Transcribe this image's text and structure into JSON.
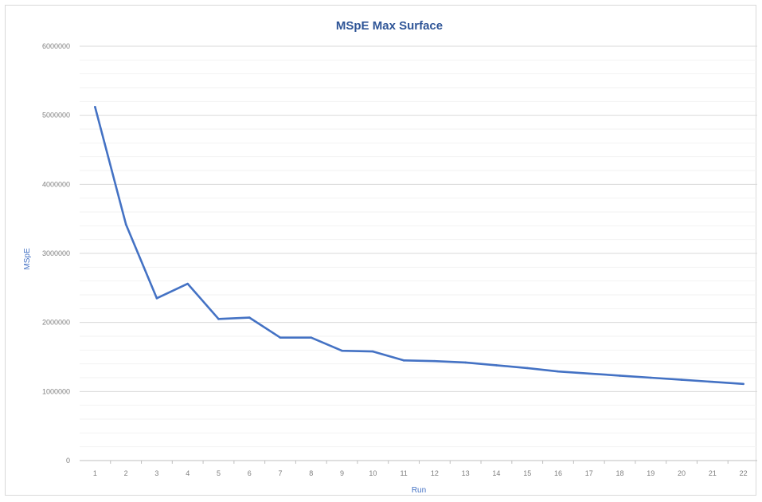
{
  "chart_data": {
    "type": "line",
    "title": "MSpE Max Surface",
    "xlabel": "Run",
    "ylabel": "MSpE",
    "categories": [
      "1",
      "2",
      "3",
      "4",
      "5",
      "6",
      "7",
      "8",
      "9",
      "10",
      "11",
      "12",
      "13",
      "14",
      "15",
      "16",
      "17",
      "18",
      "19",
      "20",
      "21",
      "22"
    ],
    "series": [
      {
        "values": [
          5120000,
          3420000,
          2350000,
          2560000,
          2050000,
          2070000,
          1780000,
          1780000,
          1590000,
          1580000,
          1450000,
          1440000,
          1420000,
          1380000,
          1340000,
          1290000,
          1260000,
          1230000,
          1200000,
          1170000,
          1140000,
          1110000
        ],
        "color": "#4472c4"
      }
    ],
    "ylim": [
      0,
      6000000
    ],
    "yticks": [
      "0",
      "1000000",
      "2000000",
      "3000000",
      "4000000",
      "5000000",
      "6000000"
    ],
    "grid": true,
    "minor_grid": true,
    "legend": "none"
  }
}
